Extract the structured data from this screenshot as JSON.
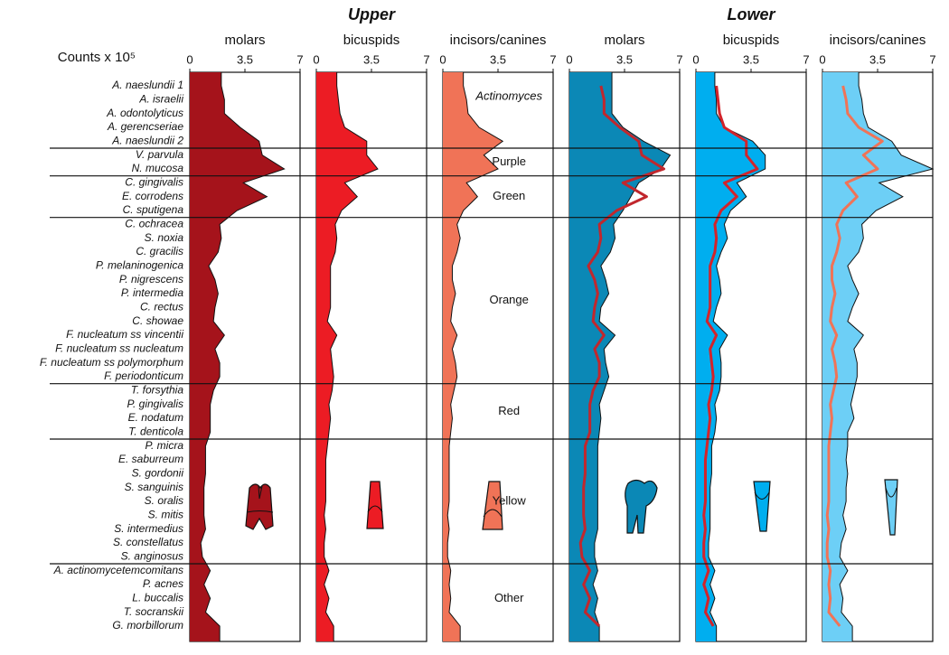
{
  "chart_data": {
    "type": "area",
    "x_label": "Counts x 10⁵",
    "headings": [
      "Upper",
      "Lower"
    ],
    "categories": [
      "A. naeslundii 1",
      "A. israelii",
      "A. odontolyticus",
      "A. gerencseriae",
      "A. naeslundii 2",
      "V. parvula",
      "N. mucosa",
      "C. gingivalis",
      "E. corrodens",
      "C. sputigena",
      "C. ochracea",
      "S. noxia",
      "C. gracilis",
      "P. melaninogenica",
      "P. nigrescens",
      "P. intermedia",
      "C. rectus",
      "C. showae",
      "F. nucleatum ss vincentii",
      "F. nucleatum ss nucleatum",
      "F. nucleatum ss polymorphum",
      "F. periodonticum",
      "T. forsythia",
      "P. gingivalis",
      "E. nodatum",
      "T. denticola",
      "P. micra",
      "E. saburreum",
      "S. gordonii",
      "S. sanguinis",
      "S. oralis",
      "S. mitis",
      "S. intermedius",
      "S. constellatus",
      "S. anginosus",
      "A. actinomycetemcomitans",
      "P. acnes",
      "L. buccalis",
      "T. socranskii",
      "G. morbillorum"
    ],
    "complexes": [
      "Actinomyces",
      "Purple",
      "Green",
      "Orange",
      "Red",
      "Yellow",
      "Other"
    ],
    "overlay_upper_on_lower": true,
    "panels": [
      {
        "heading": 0,
        "title": "molars",
        "color": "#a5131b",
        "xlim": [
          0,
          7
        ],
        "xticks": [
          0,
          3.5,
          7
        ],
        "values": [
          2.0,
          2.2,
          2.2,
          3.2,
          4.4,
          4.6,
          6.0,
          3.4,
          4.9,
          3.0,
          1.9,
          2.0,
          1.8,
          1.2,
          1.6,
          1.8,
          1.6,
          1.5,
          2.2,
          1.6,
          1.9,
          1.9,
          1.5,
          1.3,
          1.3,
          1.3,
          1.0,
          1.0,
          1.0,
          0.9,
          0.9,
          0.9,
          1.0,
          0.7,
          0.8,
          1.3,
          0.9,
          1.3,
          1.0,
          1.9
        ]
      },
      {
        "heading": 0,
        "title": "bicuspids",
        "color": "#ec1c24",
        "xlim": [
          0,
          7
        ],
        "xticks": [
          0,
          3.5,
          7
        ],
        "values": [
          1.3,
          1.4,
          1.5,
          1.8,
          3.2,
          3.2,
          3.9,
          1.8,
          2.6,
          1.6,
          1.2,
          1.3,
          1.2,
          0.9,
          0.9,
          0.9,
          0.9,
          0.7,
          1.3,
          0.9,
          1.0,
          1.1,
          1.0,
          0.8,
          0.9,
          0.8,
          0.7,
          0.6,
          0.6,
          0.6,
          0.6,
          0.5,
          0.6,
          0.5,
          0.5,
          0.8,
          0.5,
          0.8,
          0.6,
          1.1
        ]
      },
      {
        "heading": 0,
        "title": "incisors/canines",
        "color": "#f07357",
        "xlim": [
          0,
          7
        ],
        "xticks": [
          0,
          3.5,
          7
        ],
        "values": [
          1.3,
          1.5,
          1.6,
          2.3,
          3.8,
          2.6,
          3.5,
          1.5,
          2.2,
          1.3,
          0.9,
          1.1,
          0.9,
          0.6,
          0.6,
          0.8,
          0.6,
          0.5,
          0.9,
          0.6,
          0.8,
          0.9,
          0.7,
          0.5,
          0.6,
          0.5,
          0.4,
          0.4,
          0.4,
          0.4,
          0.4,
          0.3,
          0.4,
          0.3,
          0.3,
          0.5,
          0.4,
          0.5,
          0.4,
          1.1
        ]
      },
      {
        "heading": 1,
        "title": "molars",
        "color": "#0b88b6",
        "overlay_color": "#c1272d",
        "xlim": [
          0,
          7
        ],
        "xticks": [
          0,
          3.5,
          7
        ],
        "values": [
          2.7,
          2.7,
          2.7,
          3.4,
          4.7,
          6.4,
          5.8,
          4.4,
          3.9,
          3.4,
          2.8,
          2.9,
          2.6,
          2.0,
          2.3,
          2.5,
          2.0,
          1.9,
          2.9,
          2.2,
          2.3,
          2.5,
          2.2,
          1.9,
          2.0,
          1.9,
          1.8,
          1.8,
          1.8,
          1.8,
          1.8,
          1.8,
          1.8,
          1.6,
          1.6,
          1.8,
          1.5,
          1.8,
          1.6,
          1.9
        ]
      },
      {
        "heading": 1,
        "title": "bicuspids",
        "color": "#00aeef",
        "overlay_color": "#d3232a",
        "xlim": [
          0,
          7
        ],
        "xticks": [
          0,
          3.5,
          7
        ],
        "values": [
          1.2,
          1.3,
          1.3,
          1.8,
          3.6,
          4.4,
          4.4,
          2.6,
          3.2,
          2.2,
          1.8,
          2.0,
          1.6,
          1.3,
          1.5,
          1.6,
          1.3,
          1.1,
          2.0,
          1.5,
          1.6,
          1.6,
          1.5,
          1.2,
          1.3,
          1.2,
          1.0,
          1.0,
          1.0,
          0.9,
          0.9,
          0.9,
          0.9,
          0.8,
          0.8,
          1.2,
          0.9,
          1.2,
          0.9,
          1.3
        ]
      },
      {
        "heading": 1,
        "title": "incisors/canines",
        "color": "#6dcff6",
        "overlay_color": "#f07357",
        "xlim": [
          0,
          7
        ],
        "xticks": [
          0,
          3.5,
          7
        ],
        "values": [
          2.3,
          2.5,
          2.6,
          2.9,
          4.4,
          5.0,
          7.0,
          3.6,
          5.1,
          3.4,
          2.5,
          2.6,
          2.3,
          1.6,
          1.9,
          2.3,
          1.9,
          1.6,
          2.6,
          2.0,
          2.2,
          2.2,
          2.0,
          1.8,
          2.0,
          1.6,
          1.6,
          1.5,
          1.6,
          1.5,
          1.5,
          1.3,
          1.5,
          1.2,
          1.1,
          1.6,
          1.1,
          1.3,
          1.2,
          1.9
        ]
      }
    ]
  }
}
